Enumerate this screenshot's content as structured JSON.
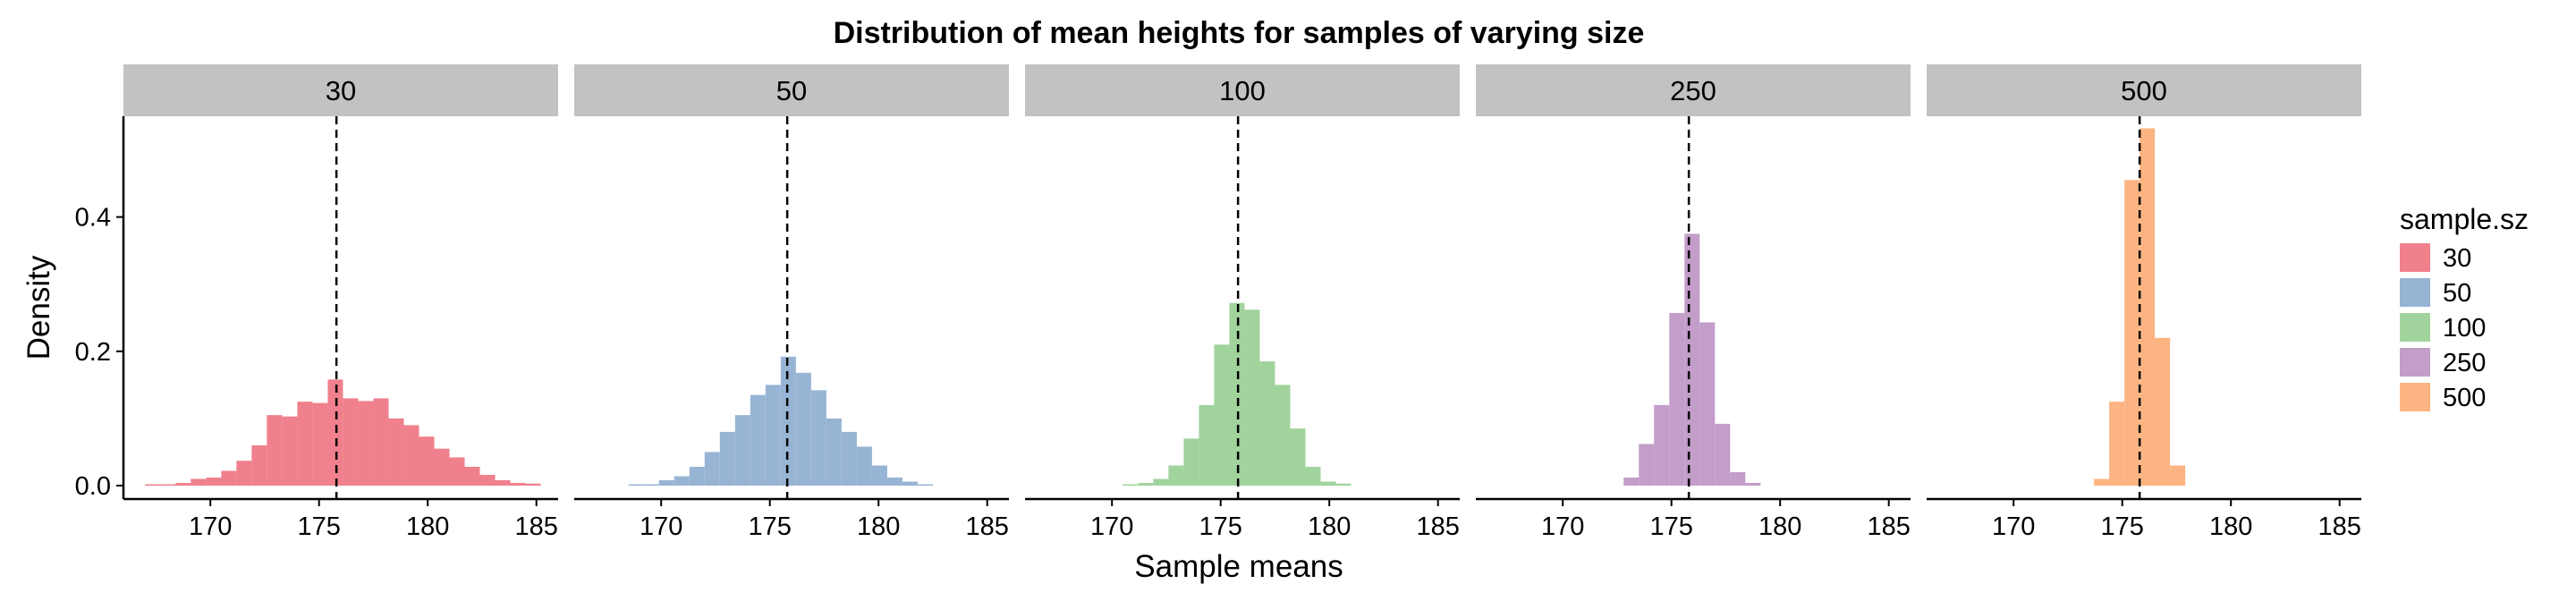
{
  "chart_data": {
    "type": "bar",
    "title": "Distribution of mean heights for samples of varying size",
    "xlabel": "Sample means",
    "ylabel": "Density",
    "xlim": [
      166,
      186
    ],
    "ylim": [
      -0.02,
      0.55
    ],
    "x_ticks": [
      170,
      175,
      180,
      185
    ],
    "x_tick_labels": [
      "170",
      "175",
      "180",
      "185"
    ],
    "y_ticks": [
      0.0,
      0.2,
      0.4
    ],
    "y_tick_labels": [
      "0.0",
      "0.2",
      "0.4"
    ],
    "reference_line": {
      "x": 175.8,
      "style": "dashed"
    },
    "grid": false,
    "legend": {
      "title": "sample.sz",
      "position": "right",
      "entries": [
        {
          "label": "30",
          "color": "#ef808c"
        },
        {
          "label": "50",
          "color": "#98b4d4"
        },
        {
          "label": "100",
          "color": "#a1d39c"
        },
        {
          "label": "250",
          "color": "#c29ec9"
        },
        {
          "label": "500",
          "color": "#fcb482"
        }
      ]
    },
    "panels": [
      {
        "label": "30",
        "color": "#ef808c",
        "bins": [
          [
            167,
            0.002
          ],
          [
            167.7,
            0.002
          ],
          [
            168.4,
            0.004
          ],
          [
            169.1,
            0.01
          ],
          [
            169.8,
            0.012
          ],
          [
            170.5,
            0.022
          ],
          [
            171.2,
            0.037
          ],
          [
            171.9,
            0.06
          ],
          [
            172.6,
            0.105
          ],
          [
            173.3,
            0.103
          ],
          [
            174.0,
            0.125
          ],
          [
            174.7,
            0.123
          ],
          [
            175.4,
            0.158
          ],
          [
            176.1,
            0.13
          ],
          [
            176.8,
            0.126
          ],
          [
            177.5,
            0.13
          ],
          [
            178.2,
            0.1
          ],
          [
            178.9,
            0.09
          ],
          [
            179.6,
            0.073
          ],
          [
            180.3,
            0.055
          ],
          [
            181.0,
            0.042
          ],
          [
            181.7,
            0.028
          ],
          [
            182.4,
            0.016
          ],
          [
            183.1,
            0.008
          ],
          [
            183.8,
            0.004
          ],
          [
            184.5,
            0.003
          ]
        ]
      },
      {
        "label": "50",
        "color": "#98b4d4",
        "bins": [
          [
            168.5,
            0.002
          ],
          [
            169.2,
            0.002
          ],
          [
            169.9,
            0.008
          ],
          [
            170.6,
            0.014
          ],
          [
            171.3,
            0.028
          ],
          [
            172.0,
            0.05
          ],
          [
            172.7,
            0.08
          ],
          [
            173.4,
            0.105
          ],
          [
            174.1,
            0.135
          ],
          [
            174.8,
            0.15
          ],
          [
            175.5,
            0.192
          ],
          [
            176.2,
            0.168
          ],
          [
            176.9,
            0.142
          ],
          [
            177.6,
            0.1
          ],
          [
            178.3,
            0.08
          ],
          [
            179.0,
            0.058
          ],
          [
            179.7,
            0.03
          ],
          [
            180.4,
            0.012
          ],
          [
            181.1,
            0.006
          ],
          [
            181.8,
            0.002
          ]
        ]
      },
      {
        "label": "100",
        "color": "#a1d39c",
        "bins": [
          [
            170.5,
            0.002
          ],
          [
            171.2,
            0.004
          ],
          [
            171.9,
            0.01
          ],
          [
            172.6,
            0.03
          ],
          [
            173.3,
            0.07
          ],
          [
            174.0,
            0.12
          ],
          [
            174.7,
            0.21
          ],
          [
            175.4,
            0.272
          ],
          [
            176.1,
            0.262
          ],
          [
            176.8,
            0.185
          ],
          [
            177.5,
            0.15
          ],
          [
            178.2,
            0.085
          ],
          [
            178.9,
            0.028
          ],
          [
            179.6,
            0.006
          ],
          [
            180.3,
            0.003
          ]
        ]
      },
      {
        "label": "250",
        "color": "#c29ec9",
        "bins": [
          [
            172.8,
            0.012
          ],
          [
            173.5,
            0.062
          ],
          [
            174.2,
            0.12
          ],
          [
            174.9,
            0.257
          ],
          [
            175.6,
            0.375
          ],
          [
            176.3,
            0.243
          ],
          [
            177.0,
            0.092
          ],
          [
            177.7,
            0.02
          ],
          [
            178.4,
            0.004
          ]
        ]
      },
      {
        "label": "500",
        "color": "#fcb482",
        "bins": [
          [
            173.7,
            0.01
          ],
          [
            174.4,
            0.125
          ],
          [
            175.1,
            0.455
          ],
          [
            175.8,
            0.532
          ],
          [
            176.5,
            0.22
          ],
          [
            177.2,
            0.03
          ]
        ]
      }
    ]
  }
}
